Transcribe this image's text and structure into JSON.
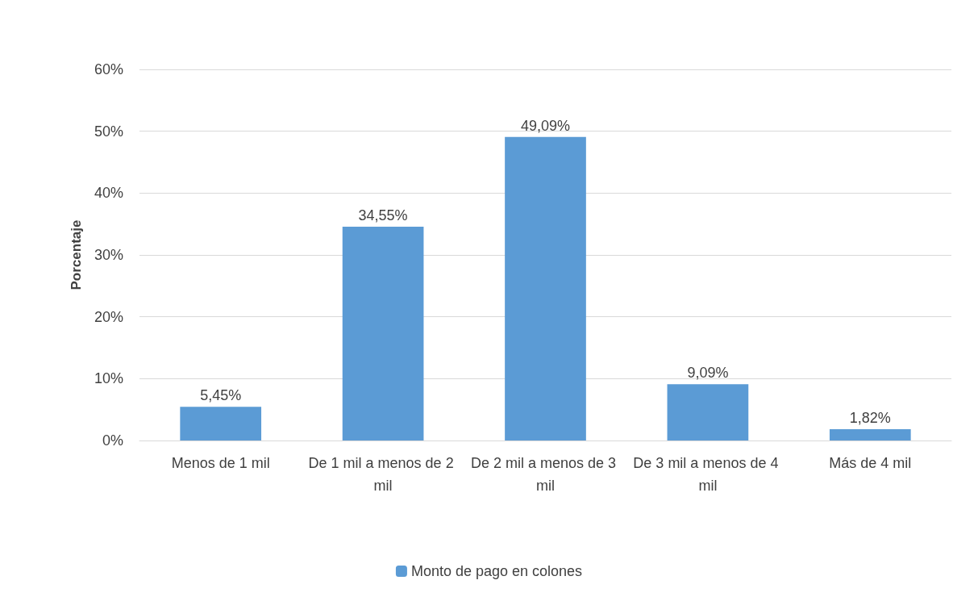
{
  "chart_data": {
    "type": "bar",
    "ylabel": "Porcentaje",
    "categories": [
      "Menos de 1 mil",
      "De 1 mil a menos de 2 mil",
      "De 2 mil a menos de 3 mil",
      "De 3 mil a menos de 4 mil",
      "Más de 4 mil"
    ],
    "series": [
      {
        "name": "Monto de pago en colones",
        "color": "#5b9bd5",
        "values": [
          5.45,
          34.55,
          49.09,
          9.09,
          1.82
        ],
        "value_labels": [
          "5,45%",
          "34,55%",
          "49,09%",
          "9,09%",
          "1,82%"
        ]
      }
    ],
    "ylim": [
      0,
      60
    ],
    "yticks": [
      {
        "value": 0,
        "label": "0%"
      },
      {
        "value": 10,
        "label": "10%"
      },
      {
        "value": 20,
        "label": "20%"
      },
      {
        "value": 30,
        "label": "30%"
      },
      {
        "value": 40,
        "label": "40%"
      },
      {
        "value": 50,
        "label": "50%"
      },
      {
        "value": 60,
        "label": "60%"
      }
    ],
    "grid": "y",
    "legend": "bottom"
  }
}
